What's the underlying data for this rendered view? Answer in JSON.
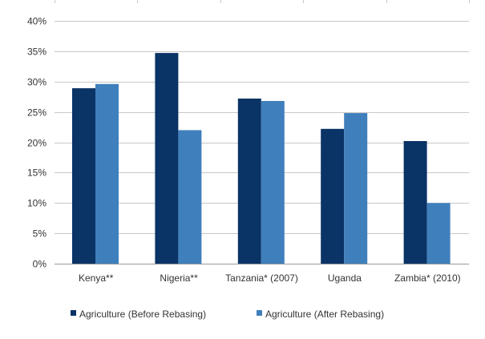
{
  "chart_data": {
    "type": "bar",
    "categories": [
      "Kenya**",
      "Nigeria**",
      "Tanzania* (2007)",
      "Uganda",
      "Zambia* (2010)"
    ],
    "series": [
      {
        "name": "Agriculture (Before Rebasing)",
        "color": "#0a3366",
        "values": [
          0.289,
          0.347,
          0.272,
          0.222,
          0.202
        ]
      },
      {
        "name": "Agriculture (After Rebasing)",
        "color": "#3f7fbc",
        "values": [
          0.296,
          0.22,
          0.268,
          0.248,
          0.1
        ]
      }
    ],
    "ylim": [
      0,
      0.4
    ],
    "yticks": [
      0,
      0.05,
      0.1,
      0.15,
      0.2,
      0.25,
      0.3,
      0.35,
      0.4
    ],
    "ytick_labels": [
      "0%",
      "5%",
      "10%",
      "15%",
      "20%",
      "25%",
      "30%",
      "35%",
      "40%"
    ],
    "grid": true,
    "grid_color": "#c8c8c8",
    "legend_position": "bottom-left",
    "title": "",
    "xlabel": "",
    "ylabel": ""
  }
}
